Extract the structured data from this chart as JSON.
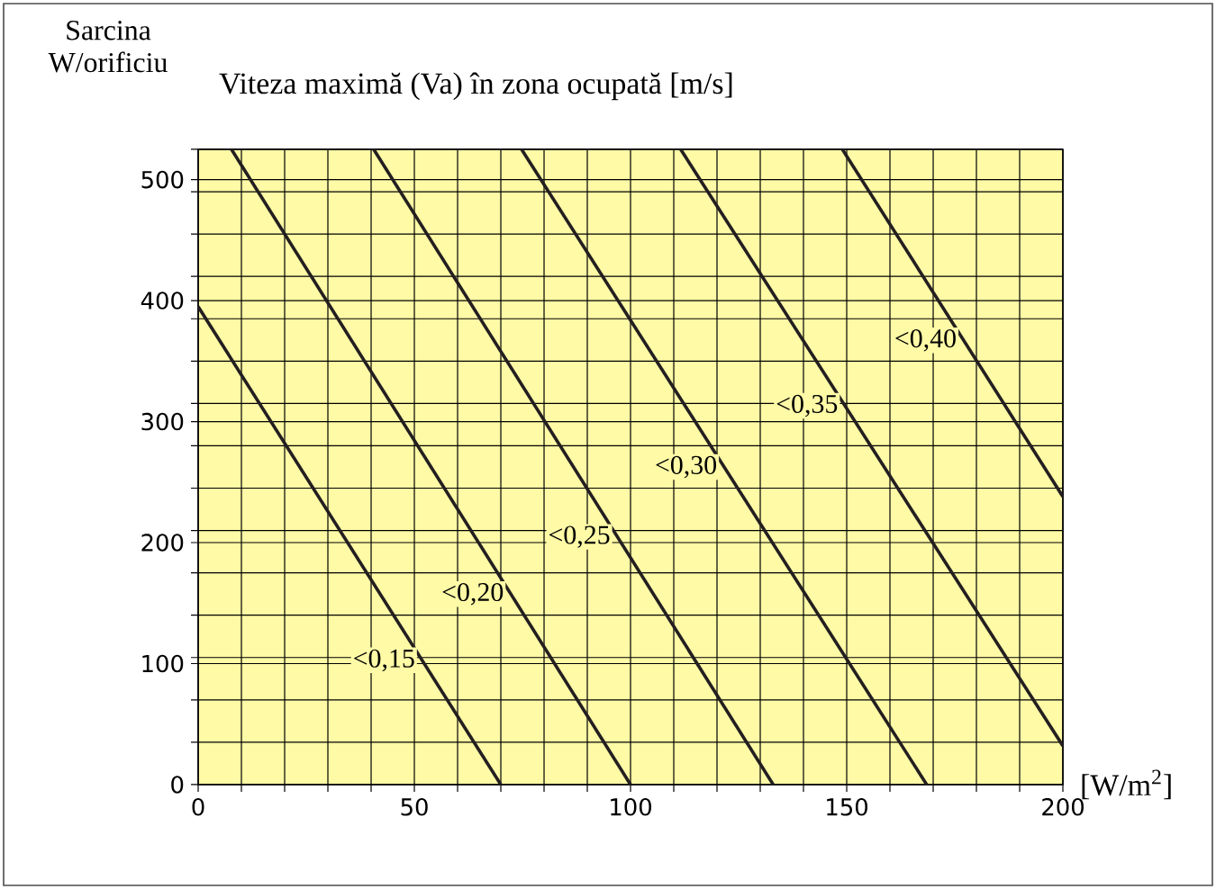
{
  "chart_data": {
    "type": "line",
    "title": "Viteza maximă (Va) în zona ocupată [m/s]",
    "xlabel": "[W/m$^{2}$]",
    "ylabel": "Sarcina W/orificiu",
    "series": [
      {
        "name": "<0,15",
        "color": "#231f20",
        "x": [
          0,
          70
        ],
        "values": [
          395,
          0
        ]
      },
      {
        "name": "<0,20",
        "color": "#231f20",
        "x": [
          7.7,
          100
        ],
        "values": [
          525,
          0
        ]
      },
      {
        "name": "<0,25",
        "color": "#231f20",
        "x": [
          40.6,
          133
        ],
        "values": [
          525,
          0
        ]
      },
      {
        "name": "<0,30",
        "color": "#231f20",
        "x": [
          74.8,
          168.5
        ],
        "values": [
          525,
          0
        ]
      },
      {
        "name": "<0,35",
        "color": "#231f20",
        "x": [
          111.6,
          200
        ],
        "values": [
          525,
          32
        ]
      },
      {
        "name": "<0,40",
        "color": "#231f20",
        "x": [
          149,
          200
        ],
        "values": [
          525,
          238
        ]
      }
    ],
    "xlim": [
      0,
      200
    ],
    "ylim": [
      0,
      525
    ],
    "xticks": [
      0,
      {
        "value": 10,
        "label": null
      },
      {
        "value": 20,
        "label": null
      },
      {
        "value": 30,
        "label": null
      },
      {
        "value": 40,
        "label": null
      },
      50,
      {
        "value": 60,
        "label": null
      },
      {
        "value": 70,
        "label": null
      },
      {
        "value": 80,
        "label": null
      },
      {
        "value": 90,
        "label": null
      },
      100,
      {
        "value": 110,
        "label": null
      },
      {
        "value": 120,
        "label": null
      },
      {
        "value": 130,
        "label": null
      },
      {
        "value": 140,
        "label": null
      },
      150,
      {
        "value": 160,
        "label": null
      },
      {
        "value": 170,
        "label": null
      },
      {
        "value": 180,
        "label": null
      },
      {
        "value": 190,
        "label": null
      },
      200
    ],
    "yticks": [
      0,
      {
        "value": 35,
        "label": null
      },
      {
        "value": 70,
        "label": null
      },
      100,
      {
        "value": 105,
        "label": null
      },
      {
        "value": 140,
        "label": null
      },
      {
        "value": 175,
        "label": null
      },
      200,
      {
        "value": 210,
        "label": null
      },
      {
        "value": 245,
        "label": null
      },
      {
        "value": 280,
        "label": null
      },
      300,
      {
        "value": 315,
        "label": null
      },
      {
        "value": 350,
        "label": null
      },
      {
        "value": 385,
        "label": null
      },
      400,
      {
        "value": 420,
        "label": null
      },
      {
        "value": 455,
        "label": null
      },
      {
        "value": 490,
        "label": null
      },
      500,
      {
        "value": 525,
        "label": null
      }
    ],
    "grid": true,
    "marker": "none",
    "line_style": "solid"
  }
}
